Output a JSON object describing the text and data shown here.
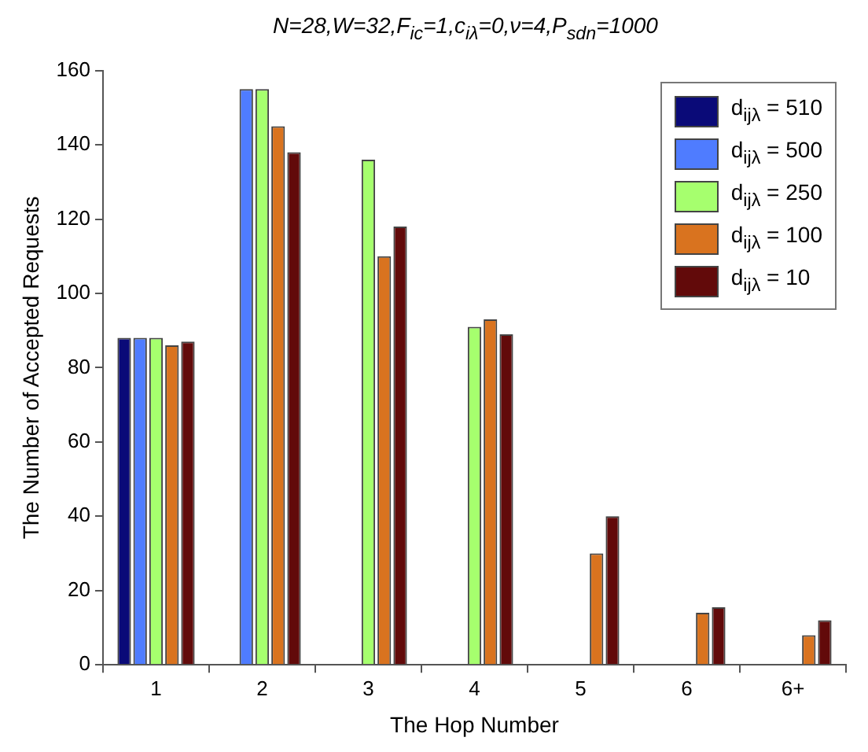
{
  "chart_data": {
    "type": "bar",
    "title": "N=28,W=32,F$_{ic}$=1,c$_{iλ}$=0,ν=4,P$_{sdn}$=1000",
    "xlabel": "The Hop Number",
    "ylabel": "The Number of Accepted Requests",
    "categories": [
      "1",
      "2",
      "3",
      "4",
      "5",
      "6",
      "6+"
    ],
    "series": [
      {
        "name": "d$_{ijλ}$ = 510",
        "color": "#0a0a78",
        "values": [
          88,
          null,
          null,
          null,
          null,
          null,
          null
        ]
      },
      {
        "name": "d$_{ijλ}$ = 500",
        "color": "#4f7cff",
        "values": [
          88,
          155,
          null,
          null,
          null,
          null,
          null
        ]
      },
      {
        "name": "d$_{ijλ}$ = 250",
        "color": "#a6ff6e",
        "values": [
          88,
          155,
          136,
          91,
          null,
          null,
          null
        ]
      },
      {
        "name": "d$_{ijλ}$ = 100",
        "color": "#d9731f",
        "values": [
          86,
          145,
          110,
          93,
          30,
          14,
          8
        ]
      },
      {
        "name": "d$_{ijλ}$ = 10",
        "color": "#620a0a",
        "values": [
          87,
          138,
          118,
          89,
          40,
          15.5,
          12
        ]
      }
    ],
    "ylim": [
      0,
      160
    ],
    "yticks": [
      0,
      20,
      40,
      60,
      80,
      100,
      120,
      140,
      160
    ],
    "grid": false,
    "legend": "top right"
  }
}
